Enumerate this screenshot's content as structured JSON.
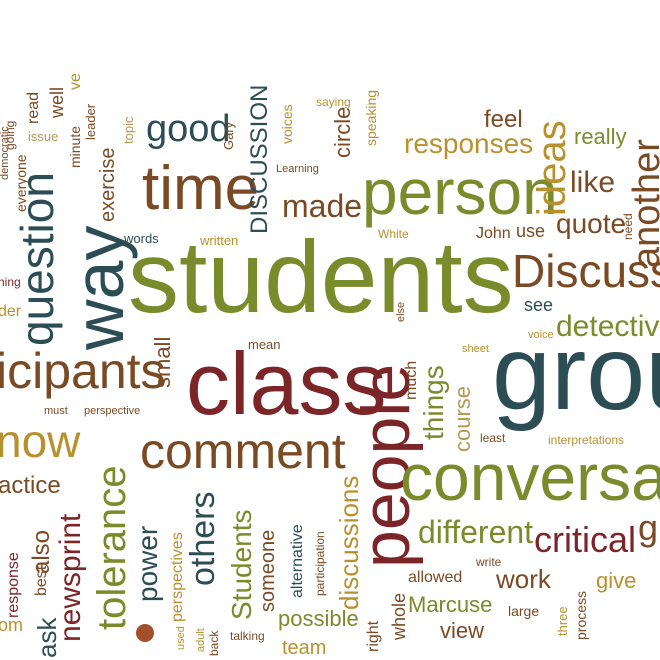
{
  "palette": {
    "olive": "#7a8b2c",
    "sage": "#9aa25a",
    "gold": "#b8912e",
    "maroon": "#7c2529",
    "brown": "#7a4a24",
    "teal": "#2c4d54",
    "tan": "#b39a55",
    "rust": "#a3502a"
  },
  "words": [
    {
      "text": "students"
    },
    {
      "text": "grou"
    },
    {
      "text": "class"
    },
    {
      "text": "people"
    },
    {
      "text": "conversat"
    },
    {
      "text": "person"
    },
    {
      "text": "time"
    },
    {
      "text": "way"
    },
    {
      "text": "comment"
    },
    {
      "text": "Discuss"
    },
    {
      "text": "icipants"
    },
    {
      "text": "question"
    },
    {
      "text": "tolerance"
    },
    {
      "text": "ideas"
    },
    {
      "text": "good"
    },
    {
      "text": "another"
    },
    {
      "text": "critical"
    },
    {
      "text": "different"
    },
    {
      "text": "DISCUSSION"
    },
    {
      "text": "responses"
    },
    {
      "text": "now"
    },
    {
      "text": "made"
    },
    {
      "text": "others"
    },
    {
      "text": "newsprint"
    },
    {
      "text": "things"
    },
    {
      "text": "detective"
    },
    {
      "text": "like"
    },
    {
      "text": "circle"
    },
    {
      "text": "quote"
    },
    {
      "text": "feel"
    },
    {
      "text": "work"
    },
    {
      "text": "Marcuse"
    },
    {
      "text": "discussions"
    },
    {
      "text": "Students"
    },
    {
      "text": "power"
    },
    {
      "text": "possible"
    },
    {
      "text": "course"
    },
    {
      "text": "small"
    },
    {
      "text": "someone"
    },
    {
      "text": "also"
    },
    {
      "text": "ask"
    },
    {
      "text": "actice"
    },
    {
      "text": "exercise"
    },
    {
      "text": "really"
    },
    {
      "text": "view"
    },
    {
      "text": "see"
    },
    {
      "text": "use"
    },
    {
      "text": "give"
    },
    {
      "text": "John"
    },
    {
      "text": "team"
    },
    {
      "text": "perspectives"
    },
    {
      "text": "much"
    },
    {
      "text": "whole"
    },
    {
      "text": "allowed"
    },
    {
      "text": "g"
    },
    {
      "text": "right"
    },
    {
      "text": "alternative"
    },
    {
      "text": "response"
    },
    {
      "text": "best"
    },
    {
      "text": "mean"
    },
    {
      "text": "voices"
    },
    {
      "text": "speaking"
    },
    {
      "text": "saying"
    },
    {
      "text": "minute"
    },
    {
      "text": "leader"
    },
    {
      "text": "everyone"
    },
    {
      "text": "read"
    },
    {
      "text": "well"
    },
    {
      "text": "ve"
    },
    {
      "text": "issue"
    },
    {
      "text": "topic"
    },
    {
      "text": "Gary"
    },
    {
      "text": "words"
    },
    {
      "text": "written"
    },
    {
      "text": "Learning"
    },
    {
      "text": "White"
    },
    {
      "text": "need"
    },
    {
      "text": "sheet"
    },
    {
      "text": "else"
    },
    {
      "text": "voice"
    },
    {
      "text": "least"
    },
    {
      "text": "interpretations"
    },
    {
      "text": "write"
    },
    {
      "text": "large"
    },
    {
      "text": "three"
    },
    {
      "text": "process"
    },
    {
      "text": "participation"
    },
    {
      "text": "adult"
    },
    {
      "text": "back"
    },
    {
      "text": "used"
    },
    {
      "text": "talking"
    },
    {
      "text": "must"
    },
    {
      "text": "perspective"
    },
    {
      "text": "democratic"
    },
    {
      "text": "going"
    },
    {
      "text": "hing"
    },
    {
      "text": "der"
    },
    {
      "text": "om"
    }
  ]
}
